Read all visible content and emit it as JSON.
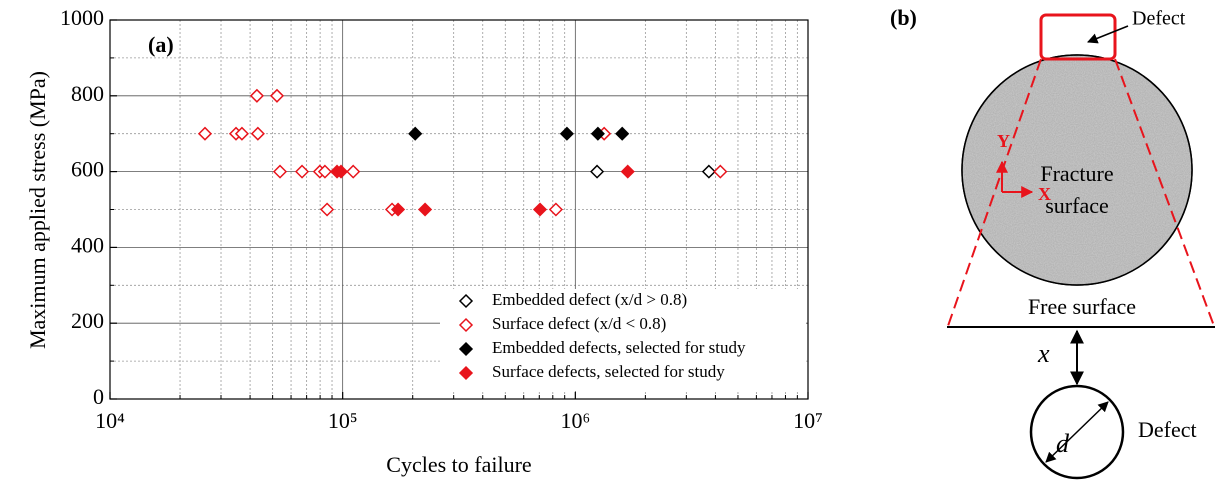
{
  "chart_data": {
    "type": "scatter",
    "panel_label": "(a)",
    "x_label": "Cycles to failure",
    "y_label": "Maximum applied stress (MPa)",
    "xscale": "log",
    "xlim": [
      10000,
      10000000
    ],
    "xticks": [
      {
        "value": 10000,
        "label": "10⁴"
      },
      {
        "value": 100000,
        "label": "10⁵"
      },
      {
        "value": 1000000,
        "label": "10⁶"
      },
      {
        "value": 10000000,
        "label": "10⁷"
      }
    ],
    "xminor_ticks": [
      20000,
      30000,
      40000,
      50000,
      60000,
      70000,
      80000,
      90000,
      200000,
      300000,
      400000,
      500000,
      600000,
      700000,
      800000,
      900000,
      2000000,
      3000000,
      4000000,
      5000000,
      6000000,
      7000000,
      8000000,
      9000000
    ],
    "ylim": [
      0,
      1000
    ],
    "yticks": [
      0,
      200,
      400,
      600,
      800,
      1000
    ],
    "yminor_ticks": [
      100,
      300,
      500,
      700,
      900
    ],
    "grid": true,
    "legend": "lower right",
    "series": [
      {
        "name": "Embedded defect (x/d > 0.8)",
        "color": "#000000",
        "filled": false,
        "x": [
          1240000,
          3750000
        ],
        "values": [
          600,
          600
        ]
      },
      {
        "name": "Surface defect (x/d < 0.8)",
        "color": "#e8141c",
        "filled": false,
        "x": [
          25600,
          34800,
          36900,
          43200,
          42800,
          52200,
          53800,
          66900,
          79800,
          83900,
          111000,
          4200000,
          85700,
          163000,
          825000,
          1330000
        ],
        "values": [
          700,
          700,
          700,
          700,
          800,
          800,
          600,
          600,
          600,
          600,
          600,
          600,
          500,
          500,
          500,
          700
        ]
      },
      {
        "name": "Embedded defects, selected for study",
        "color": "#000000",
        "filled": true,
        "x": [
          205000,
          920000,
          1250000,
          1590000
        ],
        "values": [
          700,
          700,
          700,
          700
        ]
      },
      {
        "name": "Surface defects, selected for study",
        "color": "#e8141c",
        "filled": true,
        "x": [
          94600,
          98400,
          1680000,
          173000,
          226000,
          705000
        ],
        "values": [
          600,
          600,
          600,
          500,
          500,
          500
        ]
      }
    ]
  },
  "diagram": {
    "panel_label": "(b)",
    "defect_top": "Defect",
    "axis_y": "Y",
    "axis_x": "X",
    "fracture_line1": "Fracture",
    "fracture_line2": "surface",
    "free_surface": "Free surface",
    "distance": "x",
    "diameter": "d",
    "defect_bottom": "Defect"
  }
}
